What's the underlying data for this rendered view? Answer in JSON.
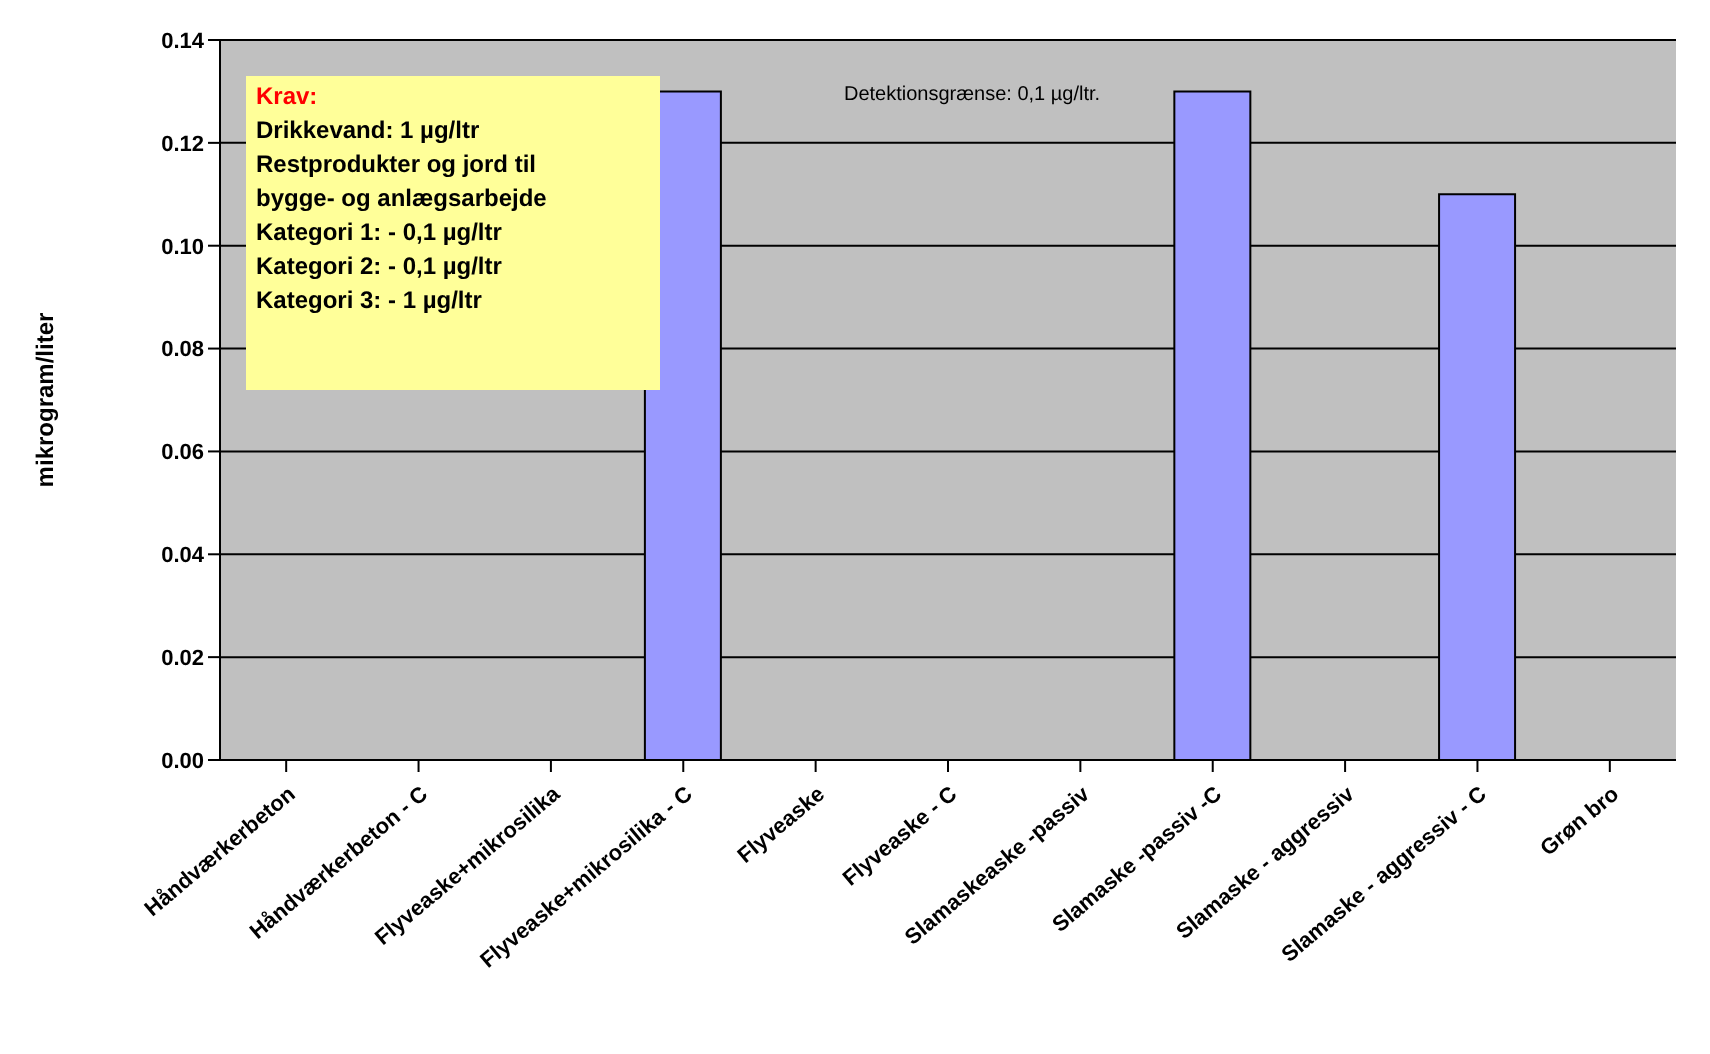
{
  "chart_data": {
    "type": "bar",
    "ylabel": "mikrogram/liter",
    "categories": [
      "Håndværkerbeton",
      "Håndværkerbeton - C",
      "Flyveaske+mikrosilika",
      "Flyveaske+mikrosilika - C",
      "Flyveaske",
      "Flyveaske - C",
      "Slamaskeaske -passiv",
      "Slamaske -passiv -C",
      "Slamaske - aggressiv",
      "Slamaske - aggressiv - C",
      "Grøn bro"
    ],
    "values": [
      0,
      0,
      0,
      0.13,
      0,
      0,
      0,
      0.13,
      0,
      0.11,
      0
    ],
    "color": "#9999ff",
    "ylim": [
      0,
      0.14
    ],
    "yticks": [
      {
        "value": 0,
        "label": "0.00"
      },
      {
        "value": 0.02,
        "label": "0.02"
      },
      {
        "value": 0.04,
        "label": "0.04"
      },
      {
        "value": 0.06,
        "label": "0.06"
      },
      {
        "value": 0.08,
        "label": "0.08"
      },
      {
        "value": 0.1,
        "label": "0.10"
      },
      {
        "value": 0.12,
        "label": "0.12"
      },
      {
        "value": 0.14,
        "label": "0.14"
      }
    ],
    "grid": "y",
    "annotations": [
      "Krav:",
      "Drikkevand: 1 µg/ltr",
      "Restprodukter og jord til",
      "bygge- og anlægsarbejde",
      "Kategori 1: - 0,1 µg/ltr",
      "Kategori 2: - 0,1 µg/ltr",
      "Kategori 3: - 1 µg/ltr",
      "Detektionsgrænse: 0,1 µg/ltr."
    ]
  }
}
